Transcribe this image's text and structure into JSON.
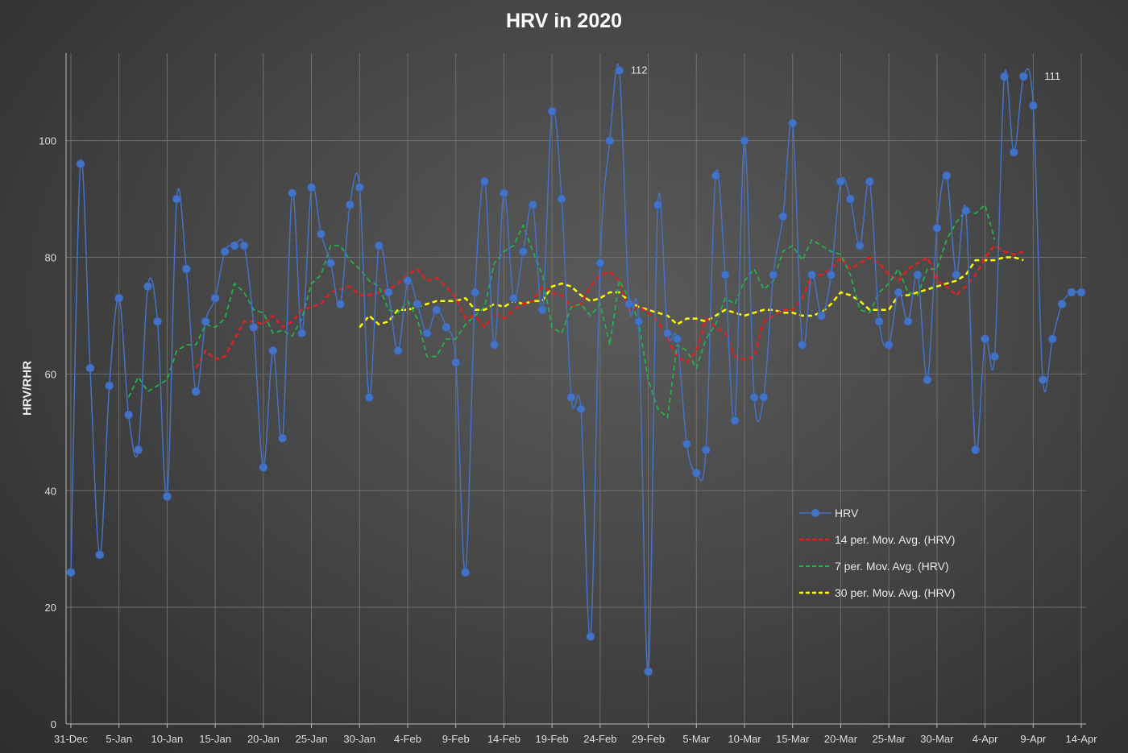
{
  "chart_data": {
    "type": "line",
    "title": "HRV in 2020",
    "xlabel": "",
    "ylabel": "HRV/RHR",
    "ylim": [
      0,
      115
    ],
    "yticks": [
      0,
      20,
      40,
      60,
      80,
      100
    ],
    "xlim": [
      "2019-12-31",
      "2020-04-14"
    ],
    "xtick_labels": [
      "31-Dec",
      "5-Jan",
      "10-Jan",
      "15-Jan",
      "20-Jan",
      "25-Jan",
      "30-Jan",
      "4-Feb",
      "9-Feb",
      "14-Feb",
      "19-Feb",
      "24-Feb",
      "29-Feb",
      "5-Mar",
      "10-Mar",
      "15-Mar",
      "20-Mar",
      "25-Mar",
      "30-Mar",
      "4-Apr",
      "9-Apr",
      "14-Apr"
    ],
    "grid": true,
    "legend_position": "bottom-right",
    "colors": {
      "hrv": "#4472c4",
      "ma14": "#e02020",
      "ma7": "#22b14c",
      "ma30": "#ffff00"
    },
    "data_labels": [
      {
        "date": "2020-02-26",
        "value": 112,
        "text": "112"
      },
      {
        "date": "2020-04-09",
        "value": 111,
        "text": "111"
      }
    ],
    "series": [
      {
        "name": "HRV",
        "dates": [
          "2019-12-31",
          "2020-01-01",
          "2020-01-02",
          "2020-01-03",
          "2020-01-04",
          "2020-01-05",
          "2020-01-06",
          "2020-01-07",
          "2020-01-08",
          "2020-01-09",
          "2020-01-10",
          "2020-01-11",
          "2020-01-12",
          "2020-01-13",
          "2020-01-14",
          "2020-01-15",
          "2020-01-16",
          "2020-01-17",
          "2020-01-18",
          "2020-01-19",
          "2020-01-20",
          "2020-01-21",
          "2020-01-22",
          "2020-01-23",
          "2020-01-24",
          "2020-01-25",
          "2020-01-26",
          "2020-01-27",
          "2020-01-28",
          "2020-01-29",
          "2020-01-30",
          "2020-01-31",
          "2020-02-01",
          "2020-02-02",
          "2020-02-03",
          "2020-02-04",
          "2020-02-05",
          "2020-02-06",
          "2020-02-07",
          "2020-02-08",
          "2020-02-09",
          "2020-02-10",
          "2020-02-11",
          "2020-02-12",
          "2020-02-13",
          "2020-02-14",
          "2020-02-15",
          "2020-02-16",
          "2020-02-17",
          "2020-02-18",
          "2020-02-19",
          "2020-02-20",
          "2020-02-21",
          "2020-02-22",
          "2020-02-23",
          "2020-02-24",
          "2020-02-25",
          "2020-02-26",
          "2020-02-27",
          "2020-02-28",
          "2020-02-29",
          "2020-03-01",
          "2020-03-02",
          "2020-03-03",
          "2020-03-04",
          "2020-03-05",
          "2020-03-06",
          "2020-03-07",
          "2020-03-08",
          "2020-03-09",
          "2020-03-10",
          "2020-03-11",
          "2020-03-12",
          "2020-03-13",
          "2020-03-14",
          "2020-03-15",
          "2020-03-16",
          "2020-03-17",
          "2020-03-18",
          "2020-03-19",
          "2020-03-20",
          "2020-03-21",
          "2020-03-22",
          "2020-03-23",
          "2020-03-24",
          "2020-03-25",
          "2020-03-26",
          "2020-03-27",
          "2020-03-28",
          "2020-03-29",
          "2020-03-30",
          "2020-03-31",
          "2020-04-01",
          "2020-04-02",
          "2020-04-03",
          "2020-04-04",
          "2020-04-05",
          "2020-04-06",
          "2020-04-07",
          "2020-04-08",
          "2020-04-09",
          "2020-04-10",
          "2020-04-11",
          "2020-04-12",
          "2020-04-13",
          "2020-04-14"
        ],
        "values": [
          26,
          96,
          61,
          29,
          58,
          73,
          53,
          47,
          75,
          69,
          39,
          90,
          78,
          57,
          69,
          73,
          81,
          82,
          82,
          68,
          44,
          64,
          49,
          91,
          67,
          92,
          84,
          79,
          72,
          89,
          92,
          56,
          82,
          74,
          64,
          76,
          72,
          67,
          71,
          68,
          62,
          26,
          74,
          93,
          65,
          91,
          73,
          81,
          89,
          71,
          105,
          90,
          56,
          54,
          15,
          79,
          100,
          112,
          72,
          69,
          9,
          89,
          67,
          66,
          48,
          43,
          47,
          94,
          77,
          52,
          100,
          56,
          56,
          77,
          87,
          103,
          65,
          77,
          70,
          77,
          93,
          90,
          82,
          93,
          69,
          65,
          74,
          69,
          77,
          59,
          85,
          94,
          77,
          88,
          47,
          66,
          63,
          111,
          98,
          111,
          106,
          59,
          66,
          72,
          74,
          74
        ]
      },
      {
        "name": "14 per. Mov. Avg. (HRV)",
        "start": "2020-01-13",
        "values": [
          61,
          64,
          62.5,
          63,
          66,
          69,
          69,
          68.5,
          70,
          68,
          69,
          71,
          71.5,
          72,
          74,
          74.5,
          75,
          73.5,
          73.5,
          74,
          74.5,
          75.5,
          77,
          78,
          76,
          76.5,
          75,
          73,
          69.5,
          70,
          68,
          70.5,
          69.5,
          71,
          72,
          72.5,
          75,
          74,
          73.5,
          71.5,
          72,
          75,
          77,
          77.5,
          76,
          71,
          71.5,
          70.5,
          69,
          66,
          63,
          62,
          64,
          69.5,
          68,
          67,
          63,
          62.5,
          63,
          69,
          70,
          71,
          71,
          73,
          77,
          77,
          78,
          80,
          78,
          79,
          80,
          79,
          77,
          76,
          78,
          79,
          80,
          76,
          75,
          73.5,
          75,
          77,
          80,
          82,
          81,
          80.5,
          81
        ]
      },
      {
        "name": "7 per. Mov. Avg. (HRV)",
        "start": "2020-01-06",
        "values": [
          56,
          59.5,
          57,
          58,
          59,
          64,
          65,
          65,
          68.5,
          68,
          69.5,
          75.5,
          74,
          71,
          70.5,
          67,
          67.5,
          66.5,
          69.5,
          75.5,
          77,
          82,
          82,
          79.5,
          78,
          76,
          75,
          71,
          70.5,
          72.5,
          69.5,
          63,
          63,
          66,
          66,
          68.5,
          70,
          71.5,
          79,
          81,
          82,
          85.5,
          81,
          77,
          68,
          67,
          71.5,
          72,
          70,
          72,
          65,
          76,
          73,
          69,
          59,
          54,
          52.5,
          65,
          64,
          61,
          66,
          68.5,
          73,
          72,
          76,
          78,
          74.5,
          76,
          81,
          82,
          79.5,
          83,
          82,
          81,
          80.5,
          77,
          71,
          70.5,
          74,
          75.5,
          78,
          74,
          73.5,
          78,
          78,
          83,
          86,
          88,
          87.5,
          89,
          83
        ]
      },
      {
        "name": "30 per. Mov. Avg. (HRV)",
        "start": "2020-01-30",
        "values": [
          68,
          70,
          68.5,
          69,
          71,
          71,
          71.5,
          72,
          72.5,
          72.5,
          72.5,
          73,
          71,
          71,
          72,
          71.5,
          72.5,
          72,
          72.5,
          72.5,
          75,
          75.5,
          75,
          73.5,
          72.5,
          73,
          74,
          74,
          72.5,
          71.5,
          71,
          70.5,
          70,
          68.5,
          69.5,
          69.5,
          69,
          70,
          71,
          70.5,
          70,
          70.5,
          71,
          71,
          70.5,
          70.5,
          70,
          70,
          70.5,
          72,
          74,
          73.5,
          72.5,
          71,
          71,
          71,
          73.5,
          73.5,
          74,
          74.5,
          75,
          75.5,
          76,
          77,
          79.5,
          79.5,
          79.5,
          80,
          80,
          79.5
        ]
      }
    ]
  }
}
